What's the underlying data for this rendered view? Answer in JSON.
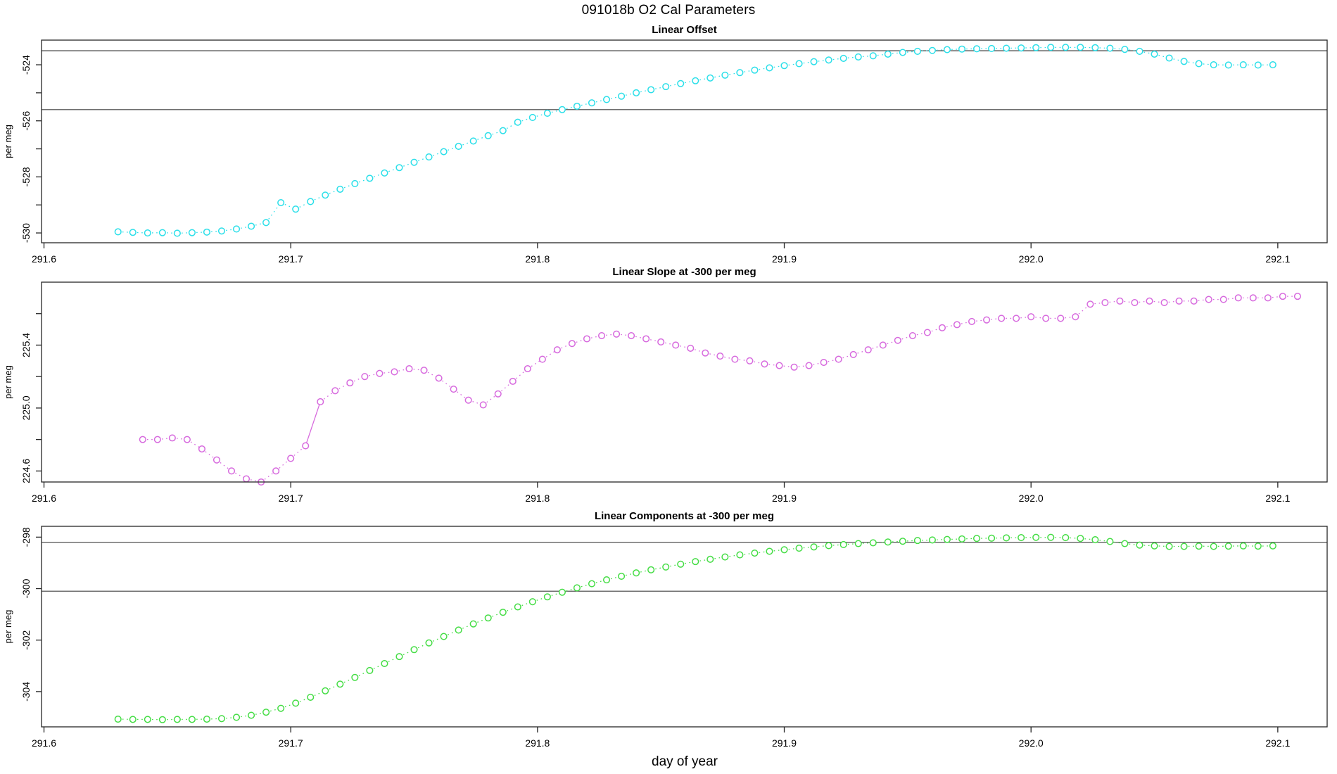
{
  "figure": {
    "title": "091018b   O2 Cal Parameters",
    "xlabel": "day of year",
    "background": "#ffffff",
    "frame_color": "#262626",
    "ref_line_color": "#3f3f3f",
    "tick_label_color": "#000000"
  },
  "chart_data": [
    {
      "type": "line",
      "title": "Linear Offset",
      "ylabel": "per meg",
      "series_color": "#2bdfe9",
      "marker": "open-circle",
      "line_style": "dotted",
      "xlim": [
        291.599,
        292.12
      ],
      "ylim": [
        -530.35,
        -523.12
      ],
      "xticks": [
        {
          "v": 291.6,
          "label": "291.6"
        },
        {
          "v": 291.7,
          "label": "291.7"
        },
        {
          "v": 291.8,
          "label": "291.8"
        },
        {
          "v": 291.9,
          "label": "291.9"
        },
        {
          "v": 292.0,
          "label": "292.0"
        },
        {
          "v": 292.1,
          "label": "292.1"
        }
      ],
      "yticks": [
        {
          "v": -524,
          "label": "-524"
        },
        {
          "v": -525
        },
        {
          "v": -526,
          "label": "-526"
        },
        {
          "v": -527
        },
        {
          "v": -528,
          "label": "-528"
        },
        {
          "v": -529
        },
        {
          "v": -530,
          "label": "-530"
        }
      ],
      "ref_lines": [
        -523.5,
        -525.6
      ],
      "solid_segments": [],
      "x_start": 291.63,
      "x_step": 0.006,
      "values": [
        -529.96,
        -529.98,
        -530.0,
        -529.99,
        -530.01,
        -529.99,
        -529.97,
        -529.93,
        -529.86,
        -529.76,
        -529.63,
        -528.92,
        -529.15,
        -528.88,
        -528.65,
        -528.44,
        -528.24,
        -528.05,
        -527.86,
        -527.67,
        -527.48,
        -527.29,
        -527.1,
        -526.91,
        -526.72,
        -526.53,
        -526.35,
        -526.05,
        -525.88,
        -525.73,
        -525.6,
        -525.48,
        -525.36,
        -525.24,
        -525.12,
        -525.0,
        -524.89,
        -524.78,
        -524.67,
        -524.57,
        -524.47,
        -524.37,
        -524.28,
        -524.19,
        -524.11,
        -524.03,
        -523.96,
        -523.89,
        -523.83,
        -523.77,
        -523.72,
        -523.68,
        -523.62,
        -523.56,
        -523.52,
        -523.49,
        -523.46,
        -523.44,
        -523.43,
        -523.42,
        -523.41,
        -523.4,
        -523.39,
        -523.38,
        -523.38,
        -523.38,
        -523.39,
        -523.41,
        -523.45,
        -523.52,
        -523.62,
        -523.76,
        -523.88,
        -523.96,
        -524.0,
        -524.01,
        -524.0,
        -524.01,
        -524.0
      ]
    },
    {
      "type": "line",
      "title": "Linear Slope at -300 per meg",
      "ylabel": "per meg",
      "series_color": "#d76ade",
      "marker": "open-circle",
      "line_style": "dotted",
      "xlim": [
        291.599,
        292.12
      ],
      "ylim": [
        224.53,
        225.8
      ],
      "xticks": [
        {
          "v": 291.6,
          "label": "291.6"
        },
        {
          "v": 291.7,
          "label": "291.7"
        },
        {
          "v": 291.8,
          "label": "291.8"
        },
        {
          "v": 291.9,
          "label": "291.9"
        },
        {
          "v": 292.0,
          "label": "292.0"
        },
        {
          "v": 292.1,
          "label": "292.1"
        }
      ],
      "yticks": [
        {
          "v": 225.6
        },
        {
          "v": 225.4,
          "label": "225.4"
        },
        {
          "v": 225.2
        },
        {
          "v": 225.0,
          "label": "225.0"
        },
        {
          "v": 224.8
        },
        {
          "v": 224.6,
          "label": "224.6"
        }
      ],
      "ref_lines": [],
      "solid_segments": [
        12
      ],
      "x_start": 291.64,
      "x_step": 0.006,
      "values": [
        224.8,
        224.8,
        224.81,
        224.8,
        224.74,
        224.67,
        224.6,
        224.55,
        224.53,
        224.6,
        224.68,
        224.76,
        225.04,
        225.11,
        225.16,
        225.2,
        225.22,
        225.23,
        225.25,
        225.24,
        225.19,
        225.12,
        225.05,
        225.02,
        225.09,
        225.17,
        225.25,
        225.31,
        225.37,
        225.41,
        225.44,
        225.46,
        225.47,
        225.46,
        225.44,
        225.42,
        225.4,
        225.38,
        225.35,
        225.33,
        225.31,
        225.3,
        225.28,
        225.27,
        225.26,
        225.27,
        225.29,
        225.31,
        225.34,
        225.37,
        225.4,
        225.43,
        225.46,
        225.48,
        225.51,
        225.53,
        225.55,
        225.56,
        225.57,
        225.57,
        225.58,
        225.57,
        225.57,
        225.58,
        225.66,
        225.67,
        225.68,
        225.67,
        225.68,
        225.67,
        225.68,
        225.68,
        225.69,
        225.69,
        225.7,
        225.7,
        225.7,
        225.71,
        225.71
      ]
    },
    {
      "type": "line",
      "title": "Linear Components at -300 per meg",
      "ylabel": "per meg",
      "series_color": "#45dd45",
      "marker": "open-circle",
      "line_style": "dotted",
      "xlim": [
        291.599,
        292.12
      ],
      "ylim": [
        -305.37,
        -297.58
      ],
      "xticks": [
        {
          "v": 291.6,
          "label": "291.6"
        },
        {
          "v": 291.7,
          "label": "291.7"
        },
        {
          "v": 291.8,
          "label": "291.8"
        },
        {
          "v": 291.9,
          "label": "291.9"
        },
        {
          "v": 292.0,
          "label": "292.0"
        },
        {
          "v": 292.1,
          "label": "292.1"
        }
      ],
      "yticks": [
        {
          "v": -298,
          "label": "-298"
        },
        {
          "v": -300,
          "label": "-300"
        },
        {
          "v": -302,
          "label": "-302"
        },
        {
          "v": -304,
          "label": "-304"
        }
      ],
      "ref_lines": [
        -298.2,
        -300.1
      ],
      "solid_segments": [],
      "x_start": 291.63,
      "x_step": 0.006,
      "values": [
        -305.07,
        -305.08,
        -305.08,
        -305.09,
        -305.08,
        -305.08,
        -305.07,
        -305.05,
        -305.0,
        -304.92,
        -304.8,
        -304.65,
        -304.45,
        -304.22,
        -303.97,
        -303.71,
        -303.45,
        -303.18,
        -302.91,
        -302.64,
        -302.37,
        -302.11,
        -301.86,
        -301.61,
        -301.37,
        -301.14,
        -300.92,
        -300.71,
        -300.51,
        -300.32,
        -300.14,
        -299.97,
        -299.81,
        -299.66,
        -299.52,
        -299.39,
        -299.27,
        -299.16,
        -299.05,
        -298.95,
        -298.86,
        -298.77,
        -298.69,
        -298.62,
        -298.55,
        -298.49,
        -298.43,
        -298.38,
        -298.33,
        -298.29,
        -298.25,
        -298.22,
        -298.19,
        -298.16,
        -298.13,
        -298.11,
        -298.09,
        -298.07,
        -298.05,
        -298.04,
        -298.03,
        -298.02,
        -298.01,
        -298.01,
        -298.02,
        -298.05,
        -298.1,
        -298.17,
        -298.25,
        -298.31,
        -298.34,
        -298.36,
        -298.36,
        -298.35,
        -298.36,
        -298.35,
        -298.34,
        -298.35,
        -298.34
      ]
    }
  ]
}
